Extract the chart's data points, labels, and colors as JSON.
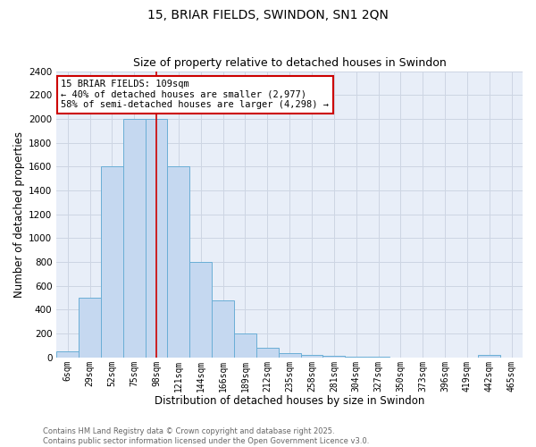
{
  "title1": "15, BRIAR FIELDS, SWINDON, SN1 2QN",
  "title2": "Size of property relative to detached houses in Swindon",
  "xlabel": "Distribution of detached houses by size in Swindon",
  "ylabel": "Number of detached properties",
  "categories": [
    "6sqm",
    "29sqm",
    "52sqm",
    "75sqm",
    "98sqm",
    "121sqm",
    "144sqm",
    "166sqm",
    "189sqm",
    "212sqm",
    "235sqm",
    "258sqm",
    "281sqm",
    "304sqm",
    "327sqm",
    "350sqm",
    "373sqm",
    "396sqm",
    "419sqm",
    "442sqm",
    "465sqm"
  ],
  "values": [
    50,
    500,
    1600,
    2000,
    2000,
    1600,
    800,
    480,
    200,
    80,
    35,
    20,
    15,
    5,
    3,
    2,
    1,
    0,
    0,
    20,
    0
  ],
  "bar_color": "#c5d8f0",
  "bar_edge_color": "#6aaed6",
  "annotation_line1": "15 BRIAR FIELDS: 109sqm",
  "annotation_line2": "← 40% of detached houses are smaller (2,977)",
  "annotation_line3": "58% of semi-detached houses are larger (4,298) →",
  "annotation_box_color": "#ffffff",
  "annotation_box_edge": "#cc0000",
  "ylim": [
    0,
    2400
  ],
  "yticks": [
    0,
    200,
    400,
    600,
    800,
    1000,
    1200,
    1400,
    1600,
    1800,
    2000,
    2200,
    2400
  ],
  "grid_color": "#cdd5e3",
  "background_color": "#e8eef8",
  "footer_text": "Contains HM Land Registry data © Crown copyright and database right 2025.\nContains public sector information licensed under the Open Government Licence v3.0.",
  "title_fontsize": 10,
  "subtitle_fontsize": 9,
  "marker_bar_index": 4,
  "marker_color": "#cc0000"
}
